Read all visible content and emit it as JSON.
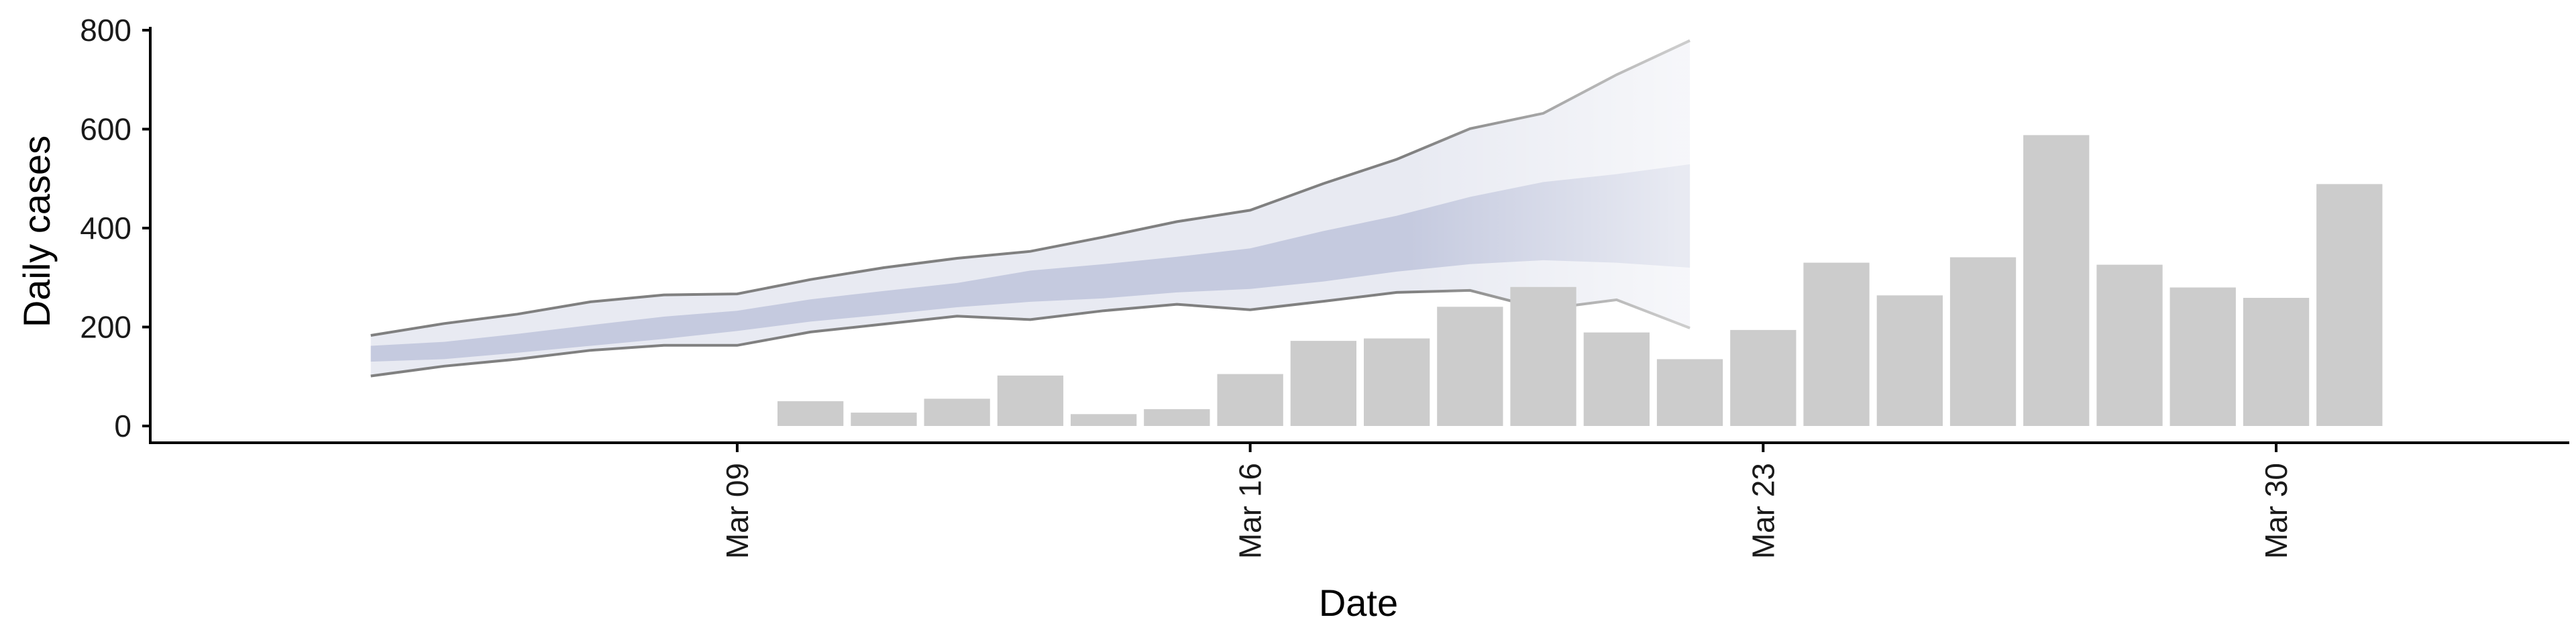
{
  "chart_data": {
    "type": "bar",
    "xlabel": "Date",
    "ylabel": "Daily cases",
    "ylim": [
      0,
      800
    ],
    "xlim": [
      "2020-03-01",
      "2020-04-03"
    ],
    "y_ticks": [
      0,
      200,
      400,
      600,
      800
    ],
    "x_ticks": [
      {
        "date": "2020-03-09",
        "label": "Mar 09"
      },
      {
        "date": "2020-03-16",
        "label": "Mar 16"
      },
      {
        "date": "2020-03-23",
        "label": "Mar 23"
      },
      {
        "date": "2020-03-30",
        "label": "Mar 30"
      }
    ],
    "grid": false,
    "legend": "none",
    "bars": {
      "color": "#cccccc",
      "dates": [
        "2020-03-10",
        "2020-03-11",
        "2020-03-12",
        "2020-03-13",
        "2020-03-14",
        "2020-03-15",
        "2020-03-16",
        "2020-03-17",
        "2020-03-18",
        "2020-03-19",
        "2020-03-20",
        "2020-03-21",
        "2020-03-22",
        "2020-03-23",
        "2020-03-24",
        "2020-03-25",
        "2020-03-26",
        "2020-03-27",
        "2020-03-28",
        "2020-03-29",
        "2020-03-30",
        "2020-03-31"
      ],
      "values": [
        50,
        27,
        55,
        102,
        24,
        34,
        105,
        172,
        177,
        241,
        281,
        189,
        135,
        194,
        330,
        264,
        341,
        588,
        326,
        280,
        259,
        489
      ]
    },
    "forecast": {
      "line_color": "#808080",
      "outer_color": "#e8eaf2",
      "inner_color": "#c5cadf",
      "dates": [
        "2020-03-04",
        "2020-03-05",
        "2020-03-06",
        "2020-03-07",
        "2020-03-08",
        "2020-03-09",
        "2020-03-10",
        "2020-03-11",
        "2020-03-12",
        "2020-03-13",
        "2020-03-14",
        "2020-03-15",
        "2020-03-16",
        "2020-03-17",
        "2020-03-18",
        "2020-03-19",
        "2020-03-20",
        "2020-03-21",
        "2020-03-22"
      ],
      "upper90": [
        183,
        207,
        226,
        251,
        265,
        267,
        296,
        320,
        339,
        353,
        382,
        413,
        436,
        490,
        539,
        601,
        632,
        710,
        779
      ],
      "lower90": [
        101,
        121,
        135,
        153,
        163,
        163,
        190,
        206,
        222,
        215,
        233,
        246,
        235,
        252,
        270,
        274,
        236,
        255,
        198
      ],
      "upper50": [
        162,
        170,
        186,
        204,
        221,
        233,
        256,
        273,
        289,
        314,
        327,
        342,
        359,
        394,
        425,
        463,
        493,
        509,
        529
      ],
      "lower50": [
        130,
        135,
        148,
        162,
        176,
        192,
        211,
        225,
        240,
        251,
        258,
        270,
        277,
        292,
        312,
        327,
        335,
        330,
        320
      ]
    }
  }
}
